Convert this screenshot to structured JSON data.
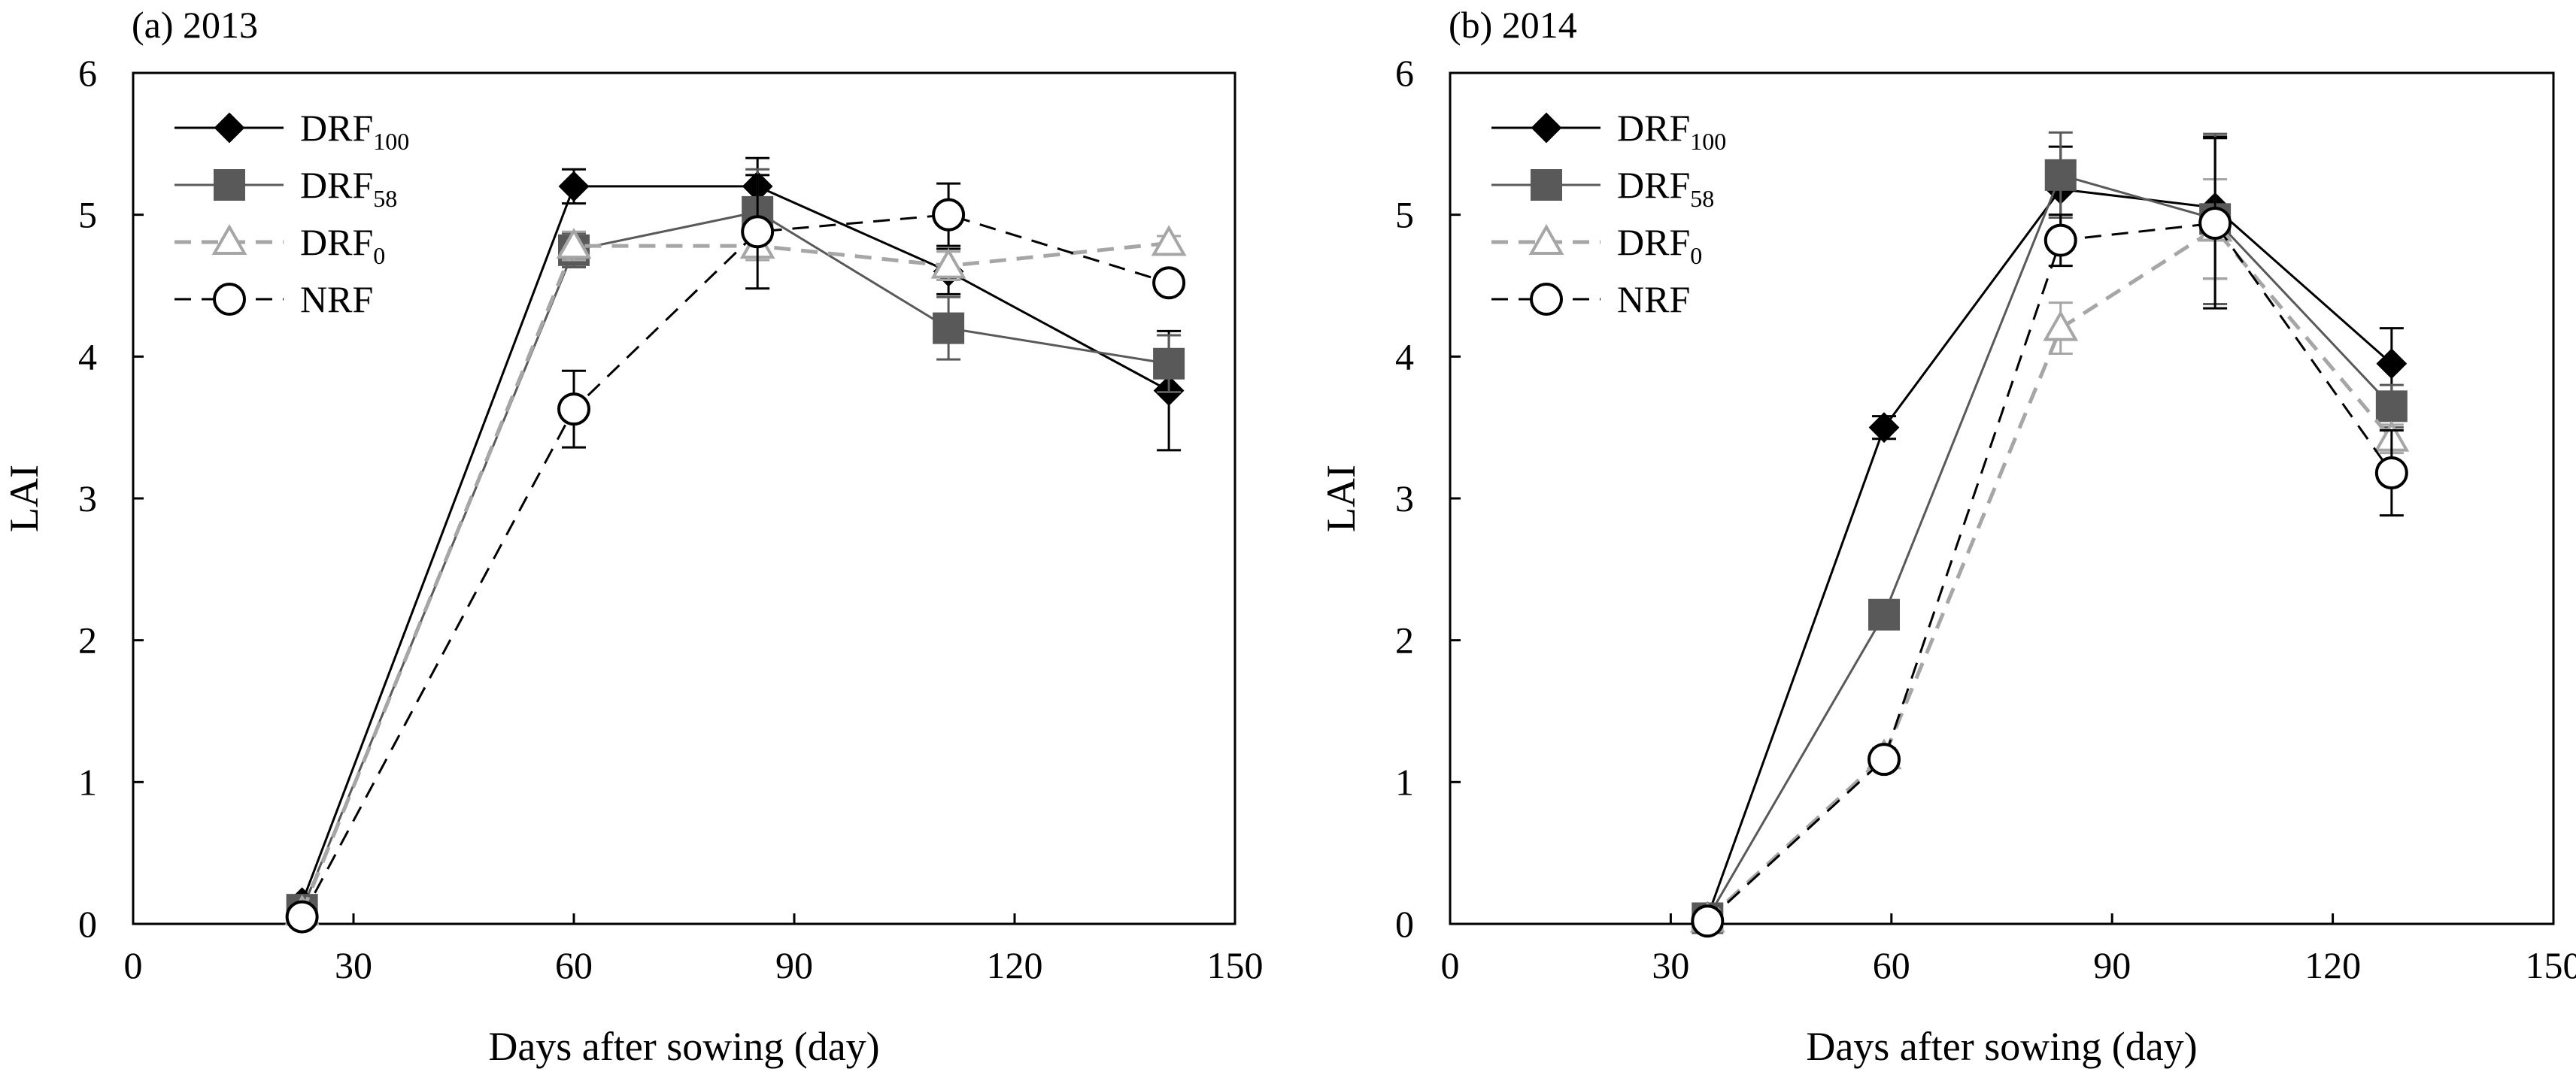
{
  "chart_data": [
    {
      "type": "line",
      "title": "(a) 2013",
      "xlabel": "Days after sowing (day)",
      "ylabel": "LAI",
      "xlim": [
        0,
        150
      ],
      "ylim": [
        0,
        6
      ],
      "xticks": [
        0,
        30,
        60,
        90,
        120,
        150
      ],
      "yticks": [
        0,
        1,
        2,
        3,
        4,
        5,
        6
      ],
      "grid": false,
      "legend_position": "top-left",
      "series": [
        {
          "name": "DRF",
          "sub": "100",
          "marker": "diamond",
          "color": "#000000",
          "dash": "solid",
          "x": [
            23,
            60,
            85,
            111,
            141
          ],
          "y": [
            0.15,
            5.2,
            5.2,
            4.6,
            3.76
          ],
          "err": [
            0,
            0.12,
            0.2,
            0.16,
            0.42
          ]
        },
        {
          "name": "DRF",
          "sub": "58",
          "marker": "square",
          "color": "#595959",
          "dash": "solid",
          "x": [
            23,
            60,
            85,
            111,
            141
          ],
          "y": [
            0.1,
            4.75,
            5.02,
            4.2,
            3.95
          ],
          "err": [
            0,
            0.12,
            0.3,
            0.22,
            0.2
          ]
        },
        {
          "name": "DRF",
          "sub": "0",
          "marker": "triangle",
          "color": "#a6a6a6",
          "dash": "dashed",
          "x": [
            23,
            60,
            85,
            111,
            141
          ],
          "y": [
            0.08,
            4.78,
            4.78,
            4.64,
            4.8
          ],
          "err": [
            0,
            0.1,
            0.1,
            0.1,
            0.05
          ]
        },
        {
          "name": "NRF",
          "sub": "",
          "marker": "circle",
          "color": "#000000",
          "dash": "dashed",
          "x": [
            23,
            60,
            85,
            111,
            141
          ],
          "y": [
            0.05,
            3.63,
            4.88,
            5.0,
            4.52
          ],
          "err": [
            0,
            0.27,
            0.4,
            0.22,
            0.05
          ]
        }
      ]
    },
    {
      "type": "line",
      "title": "(b) 2014",
      "xlabel": "Days after sowing (day)",
      "ylabel": "LAI",
      "xlim": [
        0,
        150
      ],
      "ylim": [
        0,
        6
      ],
      "xticks": [
        0,
        30,
        60,
        90,
        120,
        150
      ],
      "yticks": [
        0,
        1,
        2,
        3,
        4,
        5,
        6
      ],
      "grid": false,
      "legend_position": "top-left",
      "series": [
        {
          "name": "DRF",
          "sub": "100",
          "marker": "diamond",
          "color": "#000000",
          "dash": "solid",
          "x": [
            35,
            59,
            83,
            104,
            128
          ],
          "y": [
            0.05,
            3.5,
            5.18,
            5.05,
            3.95
          ],
          "err": [
            0,
            0.08,
            0.3,
            0.5,
            0.25
          ]
        },
        {
          "name": "DRF",
          "sub": "58",
          "marker": "square",
          "color": "#595959",
          "dash": "solid",
          "x": [
            35,
            59,
            83,
            104,
            128
          ],
          "y": [
            0.04,
            2.18,
            5.28,
            4.97,
            3.65
          ],
          "err": [
            0,
            0,
            0.3,
            0.6,
            0.15
          ]
        },
        {
          "name": "DRF",
          "sub": "0",
          "marker": "triangle",
          "color": "#a6a6a6",
          "dash": "dashed",
          "x": [
            35,
            59,
            83,
            104,
            128
          ],
          "y": [
            0.03,
            1.18,
            4.2,
            4.9,
            3.42
          ],
          "err": [
            0,
            0.06,
            0.18,
            0.35,
            0.1
          ]
        },
        {
          "name": "NRF",
          "sub": "",
          "marker": "circle",
          "color": "#000000",
          "dash": "dashed",
          "x": [
            35,
            59,
            83,
            104,
            128
          ],
          "y": [
            0.02,
            1.16,
            4.82,
            4.94,
            3.18
          ],
          "err": [
            0,
            0.05,
            0.18,
            0.6,
            0.3
          ]
        }
      ]
    }
  ]
}
